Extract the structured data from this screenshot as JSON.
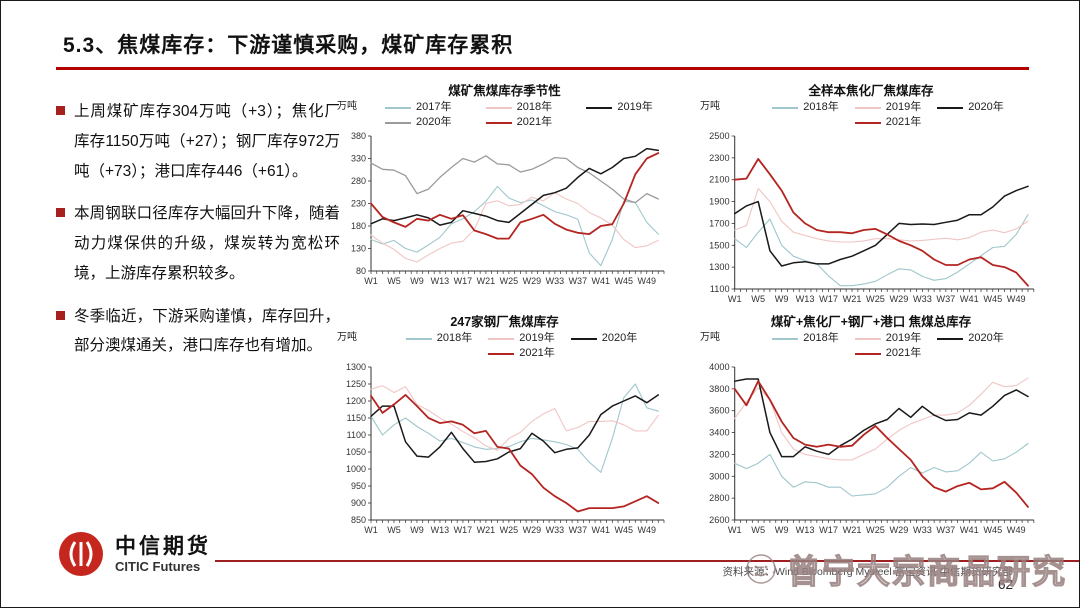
{
  "slide": {
    "title": "5.3、焦煤库存：下游谨慎采购，煤矿库存累积",
    "page_number": "62",
    "source_line": "资料来源：Wind Bloomberg Mysteel 富宝资讯 中信期货研究部",
    "watermark_text": "曾宁大宗商品研究",
    "logo_cn": "中信期货",
    "logo_en": "CITIC Futures",
    "accent_red": "#b30000",
    "bullet_red": "#a6201e"
  },
  "bullets": [
    "上周煤矿库存304万吨（+3）；焦化厂库存1150万吨（+27）；钢厂库存972万吨（+73）；港口库存446（+61）。",
    "本周钢联口径库存大幅回升下降，随着动力煤保供的升级，煤炭转为宽松环境，上游库存累积较多。",
    "冬季临近，下游采购谨慎，库存回升，部分澳煤通关，港口库存也有增加。"
  ],
  "chart_data": [
    {
      "type": "line",
      "title": "煤矿焦煤库存季节性",
      "unit": "万吨",
      "ylim": [
        80,
        380
      ],
      "y_step": 50,
      "weeks": 52,
      "x_tick_labels": [
        "W1",
        "W5",
        "W9",
        "W13",
        "W17",
        "W21",
        "W25",
        "W29",
        "W33",
        "W37",
        "W41",
        "W45",
        "W49"
      ],
      "x_sampling": "values sampled every 2 weeks, W1 to W51",
      "grid": false,
      "legend_position": "top",
      "series": [
        {
          "name": "2017年",
          "color": "#9fc7cc",
          "values": [
            150,
            140,
            148,
            130,
            122,
            138,
            155,
            185,
            196,
            212,
            235,
            268,
            242,
            232,
            238,
            225,
            212,
            205,
            195,
            120,
            92,
            150,
            235,
            232,
            188,
            162
          ]
        },
        {
          "name": "2018年",
          "color": "#f0c6c4",
          "values": [
            160,
            142,
            128,
            108,
            100,
            116,
            130,
            142,
            146,
            172,
            230,
            236,
            225,
            228,
            244,
            236,
            254,
            240,
            230,
            210,
            198,
            182,
            150,
            132,
            136,
            148
          ]
        },
        {
          "name": "2019年",
          "color": "#1a1a1a",
          "values": [
            185,
            196,
            192,
            198,
            205,
            198,
            182,
            188,
            214,
            208,
            202,
            192,
            188,
            208,
            228,
            248,
            254,
            264,
            288,
            308,
            296,
            310,
            330,
            335,
            352,
            348
          ]
        },
        {
          "name": "2020年",
          "color": "#9b9b9b",
          "values": [
            320,
            306,
            304,
            292,
            252,
            262,
            288,
            310,
            330,
            322,
            336,
            318,
            316,
            300,
            306,
            318,
            332,
            330,
            310,
            298,
            280,
            262,
            240,
            232,
            252,
            240
          ]
        },
        {
          "name": "2021年",
          "color": "#b42521",
          "values": [
            230,
            200,
            188,
            178,
            196,
            192,
            205,
            196,
            204,
            170,
            162,
            152,
            152,
            188,
            196,
            205,
            185,
            172,
            165,
            162,
            180,
            184,
            230,
            295,
            330,
            342
          ]
        }
      ]
    },
    {
      "type": "line",
      "title": "全样本焦化厂焦煤库存",
      "unit": "万吨",
      "ylim": [
        1100,
        2500
      ],
      "y_step": 200,
      "weeks": 52,
      "x_tick_labels": [
        "W1",
        "W5",
        "W9",
        "W13",
        "W17",
        "W21",
        "W25",
        "W29",
        "W33",
        "W37",
        "W41",
        "W45",
        "W49"
      ],
      "x_sampling": "values sampled every 2 weeks, W1 to W51",
      "grid": false,
      "legend_position": "top",
      "series": [
        {
          "name": "2018年",
          "color": "#9fc7cc",
          "values": [
            1560,
            1480,
            1620,
            1740,
            1500,
            1400,
            1360,
            1330,
            1220,
            1130,
            1130,
            1145,
            1170,
            1230,
            1285,
            1275,
            1215,
            1180,
            1195,
            1255,
            1330,
            1405,
            1480,
            1490,
            1600,
            1780
          ]
        },
        {
          "name": "2019年",
          "color": "#f0c6c4",
          "values": [
            1640,
            1680,
            2020,
            1900,
            1720,
            1620,
            1590,
            1560,
            1540,
            1530,
            1530,
            1540,
            1560,
            1560,
            1550,
            1540,
            1545,
            1555,
            1565,
            1550,
            1570,
            1620,
            1640,
            1615,
            1650,
            1720
          ]
        },
        {
          "name": "2020年",
          "color": "#1a1a1a",
          "values": [
            1790,
            1860,
            1900,
            1450,
            1310,
            1340,
            1350,
            1330,
            1330,
            1370,
            1400,
            1450,
            1500,
            1600,
            1700,
            1690,
            1695,
            1690,
            1710,
            1730,
            1780,
            1780,
            1850,
            1950,
            2000,
            2040
          ]
        },
        {
          "name": "2021年",
          "color": "#b42521",
          "values": [
            2100,
            2110,
            2290,
            2150,
            2000,
            1800,
            1700,
            1640,
            1620,
            1620,
            1610,
            1640,
            1650,
            1600,
            1540,
            1500,
            1450,
            1370,
            1320,
            1320,
            1370,
            1390,
            1320,
            1300,
            1250,
            1130
          ]
        }
      ]
    },
    {
      "type": "line",
      "title": "247家钢厂焦煤库存",
      "unit": "万吨",
      "ylim": [
        850,
        1300
      ],
      "y_step": 50,
      "weeks": 52,
      "x_tick_labels": [
        "W1",
        "W5",
        "W9",
        "W13",
        "W17",
        "W21",
        "W25",
        "W29",
        "W33",
        "W37",
        "W41",
        "W45",
        "W49"
      ],
      "x_sampling": "values sampled every 2 weeks, W1 to W51",
      "grid": false,
      "legend_position": "top",
      "series": [
        {
          "name": "2018年",
          "color": "#9fc7cc",
          "values": [
            1155,
            1100,
            1130,
            1150,
            1125,
            1105,
            1082,
            1090,
            1078,
            1065,
            1058,
            1060,
            1066,
            1080,
            1090,
            1086,
            1080,
            1072,
            1058,
            1020,
            990,
            1090,
            1210,
            1250,
            1180,
            1170
          ]
        },
        {
          "name": "2019年",
          "color": "#f0c6c4",
          "values": [
            1235,
            1245,
            1225,
            1242,
            1190,
            1172,
            1150,
            1132,
            1110,
            1092,
            1068,
            1055,
            1090,
            1108,
            1140,
            1162,
            1178,
            1112,
            1122,
            1140,
            1140,
            1142,
            1130,
            1112,
            1112,
            1158
          ]
        },
        {
          "name": "2020年",
          "color": "#1a1a1a",
          "values": [
            1155,
            1185,
            1185,
            1080,
            1038,
            1035,
            1065,
            1108,
            1060,
            1020,
            1022,
            1030,
            1050,
            1060,
            1105,
            1082,
            1048,
            1058,
            1062,
            1100,
            1160,
            1185,
            1200,
            1215,
            1195,
            1218
          ]
        },
        {
          "name": "2021年",
          "color": "#b42521",
          "values": [
            1215,
            1165,
            1190,
            1218,
            1185,
            1150,
            1135,
            1140,
            1130,
            1105,
            1112,
            1065,
            1060,
            1010,
            985,
            945,
            920,
            900,
            875,
            885,
            885,
            885,
            890,
            905,
            920,
            900
          ]
        }
      ]
    },
    {
      "type": "line",
      "title": "煤矿+焦化厂+钢厂+港口 焦煤总库存",
      "unit": "万吨",
      "ylim": [
        2600,
        4000
      ],
      "y_step": 200,
      "weeks": 52,
      "x_tick_labels": [
        "W1",
        "W5",
        "W9",
        "W13",
        "W17",
        "W21",
        "W25",
        "W29",
        "W33",
        "W37",
        "W41",
        "W45",
        "W49"
      ],
      "x_sampling": "values sampled every 2 weeks, W1 to W51",
      "grid": false,
      "legend_position": "top",
      "series": [
        {
          "name": "2018年",
          "color": "#9fc7cc",
          "values": [
            3120,
            3070,
            3120,
            3200,
            3000,
            2900,
            2950,
            2940,
            2900,
            2900,
            2820,
            2830,
            2840,
            2900,
            3000,
            3080,
            3030,
            3080,
            3040,
            3050,
            3120,
            3220,
            3140,
            3160,
            3220,
            3300
          ]
        },
        {
          "name": "2019年",
          "color": "#f0c6c4",
          "values": [
            3530,
            3680,
            3810,
            3700,
            3400,
            3250,
            3200,
            3180,
            3160,
            3150,
            3150,
            3200,
            3250,
            3340,
            3420,
            3480,
            3520,
            3560,
            3560,
            3580,
            3650,
            3750,
            3860,
            3820,
            3830,
            3900
          ]
        },
        {
          "name": "2020年",
          "color": "#1a1a1a",
          "values": [
            3870,
            3890,
            3890,
            3400,
            3180,
            3180,
            3270,
            3230,
            3200,
            3280,
            3340,
            3420,
            3480,
            3520,
            3620,
            3540,
            3640,
            3560,
            3510,
            3520,
            3580,
            3560,
            3640,
            3740,
            3790,
            3730
          ]
        },
        {
          "name": "2021年",
          "color": "#b42521",
          "values": [
            3800,
            3650,
            3870,
            3700,
            3500,
            3350,
            3290,
            3270,
            3290,
            3270,
            3280,
            3380,
            3460,
            3350,
            3250,
            3150,
            3000,
            2900,
            2860,
            2910,
            2940,
            2880,
            2890,
            2950,
            2850,
            2720
          ]
        }
      ]
    }
  ]
}
